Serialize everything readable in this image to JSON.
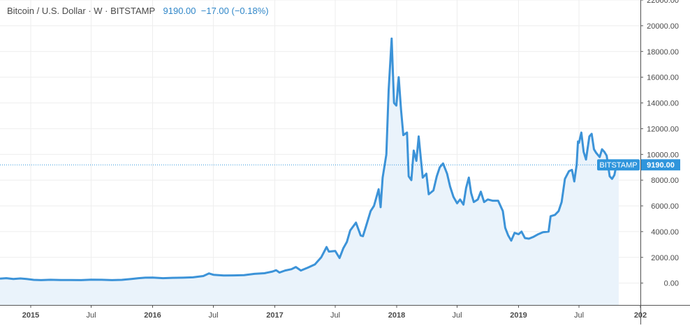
{
  "legend": {
    "symbol": "Bitcoin / U.S. Dollar · W · BITSTAMP",
    "last": "9190.00",
    "change": "−17.00 (−0.18%)"
  },
  "colors": {
    "line": "#3c93d8",
    "area": "#eaf3fb",
    "badge": "#2f95dc",
    "grid": "#eeeeee",
    "axis_text": "#4a4a4a",
    "legend_value": "#2f86c8"
  },
  "chart_data": {
    "type": "area",
    "title": "Bitcoin / U.S. Dollar · W · BITSTAMP",
    "interval": "W",
    "exchange": "BITSTAMP",
    "last_value": 9190.0,
    "last_label": "9190.00",
    "change_label": "−17.00 (−0.18%)",
    "price_badge_label": "BITSTAMP",
    "ylim": [
      -1700,
      22000
    ],
    "xlim": [
      "2014-10-01",
      "2020-01-01"
    ],
    "y_ticks": [
      {
        "v": 0,
        "label": "0.00"
      },
      {
        "v": 2000,
        "label": "2000.00"
      },
      {
        "v": 4000,
        "label": "4000.00"
      },
      {
        "v": 6000,
        "label": "6000.00"
      },
      {
        "v": 8000,
        "label": "8000.00"
      },
      {
        "v": 10000,
        "label": "10000.00"
      },
      {
        "v": 12000,
        "label": "12000.00"
      },
      {
        "v": 14000,
        "label": "14000.00"
      },
      {
        "v": 16000,
        "label": "16000.00"
      },
      {
        "v": 18000,
        "label": "18000.00"
      },
      {
        "v": 20000,
        "label": "20000.00"
      },
      {
        "v": 22000,
        "label": "22000.00"
      }
    ],
    "x_ticks": [
      {
        "d": "2015-01-01",
        "label": "2015",
        "bold": true
      },
      {
        "d": "2015-07-01",
        "label": "Jul",
        "bold": false
      },
      {
        "d": "2016-01-01",
        "label": "2016",
        "bold": true
      },
      {
        "d": "2016-07-01",
        "label": "Jul",
        "bold": false
      },
      {
        "d": "2017-01-01",
        "label": "2017",
        "bold": true
      },
      {
        "d": "2017-07-01",
        "label": "Jul",
        "bold": false
      },
      {
        "d": "2018-01-01",
        "label": "2018",
        "bold": true
      },
      {
        "d": "2018-07-01",
        "label": "Jul",
        "bold": false
      },
      {
        "d": "2019-01-01",
        "label": "2019",
        "bold": true
      },
      {
        "d": "2019-07-01",
        "label": "Jul",
        "bold": false
      },
      {
        "d": "2020-01-01",
        "label": "202",
        "bold": true
      }
    ],
    "series": [
      {
        "points": [
          [
            "2014-10-01",
            350
          ],
          [
            "2014-10-20",
            380
          ],
          [
            "2014-11-10",
            320
          ],
          [
            "2014-12-01",
            360
          ],
          [
            "2014-12-20",
            320
          ],
          [
            "2015-01-10",
            250
          ],
          [
            "2015-02-01",
            230
          ],
          [
            "2015-03-01",
            260
          ],
          [
            "2015-04-01",
            240
          ],
          [
            "2015-05-01",
            235
          ],
          [
            "2015-06-01",
            230
          ],
          [
            "2015-07-01",
            270
          ],
          [
            "2015-08-01",
            260
          ],
          [
            "2015-09-01",
            230
          ],
          [
            "2015-10-01",
            250
          ],
          [
            "2015-11-01",
            330
          ],
          [
            "2015-11-20",
            380
          ],
          [
            "2015-12-10",
            420
          ],
          [
            "2016-01-01",
            430
          ],
          [
            "2016-02-01",
            380
          ],
          [
            "2016-03-01",
            410
          ],
          [
            "2016-04-01",
            420
          ],
          [
            "2016-05-01",
            450
          ],
          [
            "2016-06-01",
            550
          ],
          [
            "2016-06-18",
            750
          ],
          [
            "2016-07-01",
            650
          ],
          [
            "2016-08-01",
            590
          ],
          [
            "2016-09-01",
            600
          ],
          [
            "2016-10-01",
            620
          ],
          [
            "2016-11-01",
            720
          ],
          [
            "2016-12-01",
            770
          ],
          [
            "2016-12-25",
            900
          ],
          [
            "2017-01-05",
            1000
          ],
          [
            "2017-01-15",
            820
          ],
          [
            "2017-02-01",
            980
          ],
          [
            "2017-02-20",
            1080
          ],
          [
            "2017-03-05",
            1250
          ],
          [
            "2017-03-20",
            980
          ],
          [
            "2017-04-10",
            1200
          ],
          [
            "2017-05-01",
            1450
          ],
          [
            "2017-05-20",
            2000
          ],
          [
            "2017-06-05",
            2800
          ],
          [
            "2017-06-12",
            2450
          ],
          [
            "2017-07-01",
            2500
          ],
          [
            "2017-07-14",
            1950
          ],
          [
            "2017-07-25",
            2700
          ],
          [
            "2017-08-05",
            3200
          ],
          [
            "2017-08-15",
            4100
          ],
          [
            "2017-09-01",
            4700
          ],
          [
            "2017-09-15",
            3700
          ],
          [
            "2017-09-22",
            3650
          ],
          [
            "2017-10-01",
            4400
          ],
          [
            "2017-10-15",
            5600
          ],
          [
            "2017-10-25",
            6000
          ],
          [
            "2017-11-08",
            7300
          ],
          [
            "2017-11-14",
            5900
          ],
          [
            "2017-11-20",
            8200
          ],
          [
            "2017-12-01",
            10000
          ],
          [
            "2017-12-08",
            15000
          ],
          [
            "2017-12-17",
            19000
          ],
          [
            "2017-12-24",
            14000
          ],
          [
            "2017-12-31",
            13800
          ],
          [
            "2018-01-07",
            16000
          ],
          [
            "2018-01-14",
            13500
          ],
          [
            "2018-01-21",
            11500
          ],
          [
            "2018-02-01",
            11700
          ],
          [
            "2018-02-06",
            8300
          ],
          [
            "2018-02-14",
            8000
          ],
          [
            "2018-02-21",
            10300
          ],
          [
            "2018-03-01",
            9500
          ],
          [
            "2018-03-08",
            11400
          ],
          [
            "2018-03-20",
            8200
          ],
          [
            "2018-03-31",
            8500
          ],
          [
            "2018-04-07",
            6900
          ],
          [
            "2018-04-21",
            7200
          ],
          [
            "2018-05-01",
            8300
          ],
          [
            "2018-05-10",
            9000
          ],
          [
            "2018-05-20",
            9300
          ],
          [
            "2018-06-01",
            8500
          ],
          [
            "2018-06-10",
            7500
          ],
          [
            "2018-06-20",
            6700
          ],
          [
            "2018-07-01",
            6200
          ],
          [
            "2018-07-10",
            6500
          ],
          [
            "2018-07-20",
            6100
          ],
          [
            "2018-07-28",
            7400
          ],
          [
            "2018-08-05",
            8200
          ],
          [
            "2018-08-12",
            7000
          ],
          [
            "2018-08-20",
            6300
          ],
          [
            "2018-09-01",
            6500
          ],
          [
            "2018-09-10",
            7100
          ],
          [
            "2018-09-20",
            6300
          ],
          [
            "2018-10-01",
            6500
          ],
          [
            "2018-10-15",
            6400
          ],
          [
            "2018-11-01",
            6400
          ],
          [
            "2018-11-15",
            5600
          ],
          [
            "2018-11-22",
            4300
          ],
          [
            "2018-12-01",
            3700
          ],
          [
            "2018-12-10",
            3300
          ],
          [
            "2018-12-20",
            3900
          ],
          [
            "2019-01-01",
            3800
          ],
          [
            "2019-01-10",
            4000
          ],
          [
            "2019-01-20",
            3500
          ],
          [
            "2019-02-01",
            3450
          ],
          [
            "2019-02-15",
            3600
          ],
          [
            "2019-03-01",
            3800
          ],
          [
            "2019-03-15",
            3950
          ],
          [
            "2019-04-01",
            4000
          ],
          [
            "2019-04-07",
            5200
          ],
          [
            "2019-04-20",
            5300
          ],
          [
            "2019-05-01",
            5600
          ],
          [
            "2019-05-10",
            6300
          ],
          [
            "2019-05-20",
            8100
          ],
          [
            "2019-06-01",
            8700
          ],
          [
            "2019-06-10",
            8800
          ],
          [
            "2019-06-17",
            7900
          ],
          [
            "2019-06-24",
            9200
          ],
          [
            "2019-06-28",
            11000
          ],
          [
            "2019-07-01",
            10900
          ],
          [
            "2019-07-08",
            11700
          ],
          [
            "2019-07-15",
            10200
          ],
          [
            "2019-07-22",
            9600
          ],
          [
            "2019-08-01",
            11400
          ],
          [
            "2019-08-08",
            11600
          ],
          [
            "2019-08-15",
            10400
          ],
          [
            "2019-08-22",
            10100
          ],
          [
            "2019-09-01",
            9800
          ],
          [
            "2019-09-08",
            10400
          ],
          [
            "2019-09-15",
            10200
          ],
          [
            "2019-09-22",
            9900
          ],
          [
            "2019-10-01",
            8300
          ],
          [
            "2019-10-08",
            8100
          ],
          [
            "2019-10-15",
            8400
          ],
          [
            "2019-10-22",
            9300
          ],
          [
            "2019-10-28",
            9190
          ]
        ]
      }
    ]
  }
}
